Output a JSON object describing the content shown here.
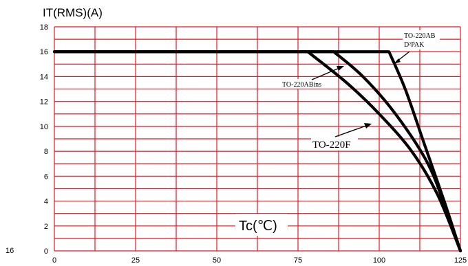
{
  "chart_data": {
    "type": "line",
    "ylabel": "IT(RMS)(A)",
    "xlabel": "Tc(℃)",
    "xlim": [
      0,
      125
    ],
    "ylim": [
      0,
      18
    ],
    "x_ticks": [
      "0",
      "25",
      "50",
      "75",
      "100",
      "125"
    ],
    "y_ticks": [
      "0",
      "2",
      "4",
      "6",
      "8",
      "10",
      "12",
      "14",
      "16",
      "18"
    ],
    "grid": true,
    "grid_color": "#e8141e",
    "line_color": "#000000",
    "series": [
      {
        "name": "TO-220F",
        "points": [
          [
            0,
            16
          ],
          [
            78,
            16
          ],
          [
            90,
            13.5
          ],
          [
            100,
            11
          ],
          [
            110,
            8
          ],
          [
            118,
            4.5
          ],
          [
            125,
            0
          ]
        ]
      },
      {
        "name": "TO-220ABins",
        "points": [
          [
            0,
            16
          ],
          [
            86,
            16
          ],
          [
            95,
            14
          ],
          [
            105,
            11
          ],
          [
            115,
            7
          ],
          [
            121,
            3
          ],
          [
            125,
            0
          ]
        ]
      },
      {
        "name": "TO-220AB / D²PAK",
        "points": [
          [
            0,
            16
          ],
          [
            103,
            16
          ],
          [
            108,
            13
          ],
          [
            114,
            8.5
          ],
          [
            120,
            4
          ],
          [
            125,
            0
          ]
        ]
      }
    ],
    "annotations": [
      {
        "id": "to220ab",
        "lines": [
          "TO-220AB",
          "D²PAK"
        ]
      },
      {
        "id": "to220abins",
        "lines": [
          "TO-220ABins"
        ]
      },
      {
        "id": "to220f",
        "lines": [
          "TO-220F"
        ]
      }
    ]
  },
  "corner_label": "16"
}
